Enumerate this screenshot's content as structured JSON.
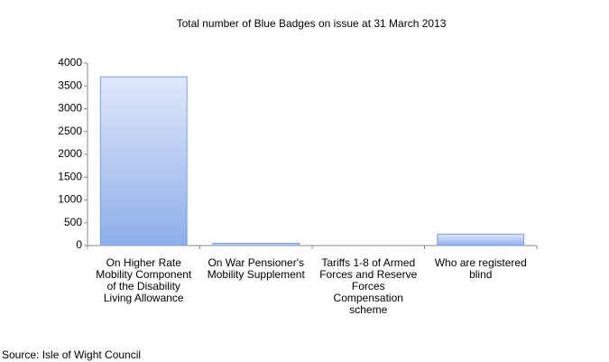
{
  "chart_data": {
    "type": "bar",
    "title": "Total number of Blue Badges on issue at 31 March 2013",
    "categories": [
      "On Higher Rate Mobility Component of the Disability Living Allowance",
      "On War Pensioner's Mobility Supplement",
      "Tariffs 1-8 of Armed Forces and Reserve Forces Compensation scheme",
      "Who are registered blind"
    ],
    "values": [
      3700,
      50,
      0,
      250
    ],
    "color": "#a9c3f0",
    "ylim": [
      0,
      4000
    ],
    "yticks": [
      0,
      500,
      1000,
      1500,
      2000,
      2500,
      3000,
      3500,
      4000
    ],
    "grid": false,
    "source": "Source: Isle of Wight Council"
  }
}
